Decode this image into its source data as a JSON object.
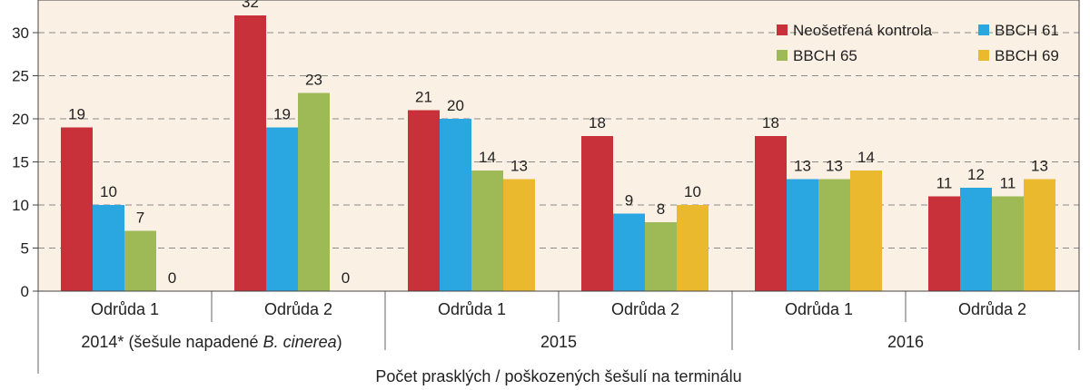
{
  "chart_data": {
    "type": "bar",
    "xlabel": "Počet prasklých / poškozených šešulí na terminálu",
    "ylabel": "",
    "ylim": [
      0,
      33
    ],
    "yticks": [
      0,
      5,
      10,
      15,
      20,
      25,
      30
    ],
    "grid": true,
    "legend_position": "top-right",
    "year_groups": [
      {
        "label": "2014* (šešule napadené ",
        "label_italic": "B. cinerea",
        "label_suffix": ")"
      },
      {
        "label": "2015"
      },
      {
        "label": "2016"
      }
    ],
    "categories": [
      "Odrůda 1",
      "Odrůda 2",
      "Odrůda 1",
      "Odrůda 2",
      "Odrůda 1",
      "Odrůda 2"
    ],
    "series": [
      {
        "name": "Neošetřená kontrola",
        "color": "#c8313a",
        "values": [
          19,
          32,
          21,
          18,
          18,
          11
        ]
      },
      {
        "name": "BBCH 61",
        "color": "#2aa6e0",
        "values": [
          10,
          19,
          20,
          9,
          13,
          12
        ]
      },
      {
        "name": "BBCH 65",
        "color": "#9dba57",
        "values": [
          7,
          23,
          14,
          8,
          13,
          11
        ]
      },
      {
        "name": "BBCH 69",
        "color": "#ebb92e",
        "values": [
          0,
          0,
          13,
          10,
          14,
          13
        ]
      }
    ]
  }
}
